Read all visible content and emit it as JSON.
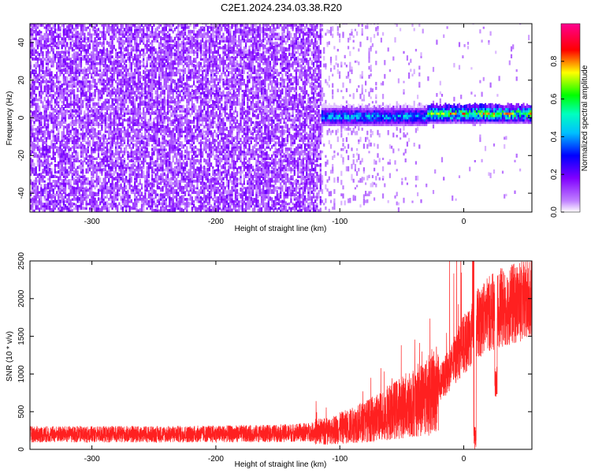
{
  "title": "C2E1.2024.234.03.38.R20",
  "chart_data": [
    {
      "type": "heatmap",
      "name": "spectrogram",
      "xlabel": "Height of straight line (km)",
      "ylabel": "Frequency (Hz)",
      "xlim": [
        -350,
        55
      ],
      "ylim": [
        -50,
        50
      ],
      "xticks": [
        "-300",
        "-200",
        "-100",
        "0"
      ],
      "xtick_values": [
        -300,
        -200,
        -100,
        0
      ],
      "yticks": [
        "-40",
        "-20",
        "0",
        "20",
        "40"
      ],
      "ytick_values": [
        -40,
        -20,
        0,
        20,
        40
      ],
      "noise_region_km": [
        -350,
        -115
      ],
      "signal_start_km": -115,
      "signal_band_hz": [
        -5,
        5
      ],
      "colorbar": {
        "label": "Normalized spectral amplitude",
        "range": [
          0,
          1
        ],
        "ticks": [
          "0.0",
          "0.2",
          "0.4",
          "0.6",
          "0.8"
        ],
        "tick_values": [
          0.0,
          0.2,
          0.4,
          0.6,
          0.8
        ],
        "colors": [
          "#ffffff",
          "#8000ff",
          "#0000ff",
          "#00ffff",
          "#00ff00",
          "#ffff00",
          "#ff0000",
          "#ff0080"
        ]
      }
    },
    {
      "type": "line",
      "name": "snr",
      "xlabel": "Height of straight line (km)",
      "ylabel": "SNR (10 * v/v)",
      "xlim": [
        -350,
        55
      ],
      "ylim": [
        0,
        2500
      ],
      "xticks": [
        "-300",
        "-200",
        "-100",
        "0"
      ],
      "xtick_values": [
        -300,
        -200,
        -100,
        0
      ],
      "yticks": [
        "0",
        "500",
        "1000",
        "1500",
        "2000",
        "2500"
      ],
      "ytick_values": [
        0,
        500,
        1000,
        1500,
        2000,
        2500
      ],
      "color": "#ff2020",
      "trend_x": [
        -350,
        -250,
        -150,
        -110,
        -90,
        -70,
        -50,
        -30,
        -20,
        -10,
        0,
        5,
        10,
        20,
        30,
        40,
        55
      ],
      "trend_y": [
        200,
        200,
        210,
        240,
        320,
        420,
        560,
        700,
        850,
        1100,
        1400,
        1450,
        1650,
        1800,
        1880,
        1930,
        1970
      ]
    }
  ]
}
